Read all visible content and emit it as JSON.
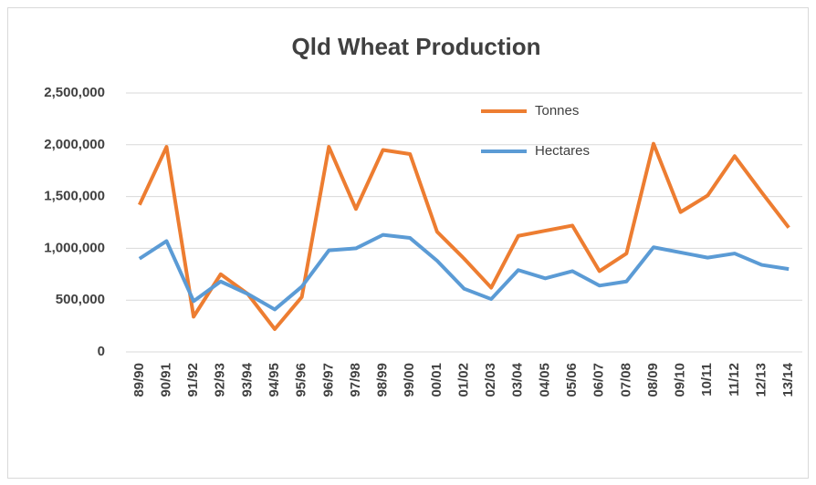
{
  "chart_data": {
    "type": "line",
    "title": "Qld Wheat Production",
    "categories": [
      "89/90",
      "90/91",
      "91/92",
      "92/93",
      "93/94",
      "94/95",
      "95/96",
      "96/97",
      "97/98",
      "98/99",
      "99/00",
      "00/01",
      "01/02",
      "02/03",
      "03/04",
      "04/05",
      "05/06",
      "06/07",
      "07/08",
      "08/09",
      "09/10",
      "10/11",
      "11/12",
      "12/13",
      "13/14"
    ],
    "series": [
      {
        "name": "Tonnes",
        "color": "#ed7d31",
        "values": [
          1420000,
          1980000,
          340000,
          750000,
          560000,
          220000,
          530000,
          1980000,
          1380000,
          1950000,
          1910000,
          1160000,
          900000,
          620000,
          1120000,
          1170000,
          1220000,
          780000,
          950000,
          2010000,
          1350000,
          1510000,
          1890000,
          1540000,
          1200000
        ]
      },
      {
        "name": "Hectares",
        "color": "#5b9bd5",
        "values": [
          900000,
          1070000,
          490000,
          680000,
          560000,
          410000,
          630000,
          980000,
          1000000,
          1130000,
          1100000,
          880000,
          610000,
          510000,
          790000,
          710000,
          780000,
          640000,
          680000,
          1010000,
          960000,
          910000,
          950000,
          840000,
          800000
        ]
      }
    ],
    "ylim": [
      0,
      2500000
    ],
    "yticks": [
      0,
      {
        "value": 500000,
        "label": "500,000"
      },
      {
        "value": 1000000,
        "label": "1,000,000"
      },
      {
        "value": 1500000,
        "label": "1,500,000"
      },
      {
        "value": 2000000,
        "label": "2,000,000"
      },
      {
        "value": 2500000,
        "label": "2,500,000"
      }
    ],
    "grid": true,
    "legend": "top-right"
  }
}
